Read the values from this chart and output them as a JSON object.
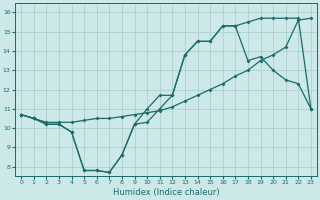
{
  "xlabel": "Humidex (Indice chaleur)",
  "bg_color": "#cce8e8",
  "grid_color": "#aacccc",
  "line_color": "#1a6b6b",
  "xlim": [
    -0.5,
    23.5
  ],
  "ylim": [
    7.5,
    16.5
  ],
  "xticks": [
    0,
    1,
    2,
    3,
    4,
    5,
    6,
    7,
    8,
    9,
    10,
    11,
    12,
    13,
    14,
    15,
    16,
    17,
    18,
    19,
    20,
    21,
    22,
    23
  ],
  "yticks": [
    8,
    9,
    10,
    11,
    12,
    13,
    14,
    15,
    16
  ],
  "line1_x": [
    0,
    1,
    2,
    3,
    4,
    5,
    6,
    7,
    8,
    9,
    10,
    11,
    12,
    13,
    14,
    15,
    16,
    17,
    18,
    19,
    20,
    21,
    22,
    23
  ],
  "line1_y": [
    10.7,
    10.5,
    10.2,
    10.2,
    9.8,
    7.8,
    7.8,
    7.7,
    8.6,
    10.2,
    11.0,
    11.7,
    11.7,
    13.8,
    14.5,
    14.5,
    15.3,
    15.3,
    15.5,
    15.7,
    15.7,
    15.7,
    15.7,
    11.0
  ],
  "line2_x": [
    0,
    1,
    2,
    3,
    4,
    5,
    6,
    7,
    8,
    9,
    10,
    11,
    12,
    13,
    14,
    15,
    16,
    17,
    18,
    19,
    20,
    21,
    22,
    23
  ],
  "line2_y": [
    10.7,
    10.5,
    10.3,
    10.3,
    10.3,
    10.4,
    10.5,
    10.5,
    10.6,
    10.7,
    10.8,
    10.9,
    11.1,
    11.4,
    11.7,
    12.0,
    12.3,
    12.7,
    13.0,
    13.5,
    13.8,
    14.2,
    15.6,
    15.7
  ],
  "line3_x": [
    0,
    1,
    2,
    3,
    4,
    5,
    6,
    7,
    8,
    9,
    10,
    11,
    12,
    13,
    14,
    15,
    16,
    17,
    18,
    19,
    20,
    21,
    22,
    23
  ],
  "line3_y": [
    10.7,
    10.5,
    10.2,
    10.2,
    9.8,
    7.8,
    7.8,
    7.7,
    8.6,
    10.2,
    10.3,
    11.0,
    11.7,
    13.8,
    14.5,
    14.5,
    15.3,
    15.3,
    13.5,
    13.7,
    13.0,
    12.5,
    12.3,
    11.0
  ]
}
